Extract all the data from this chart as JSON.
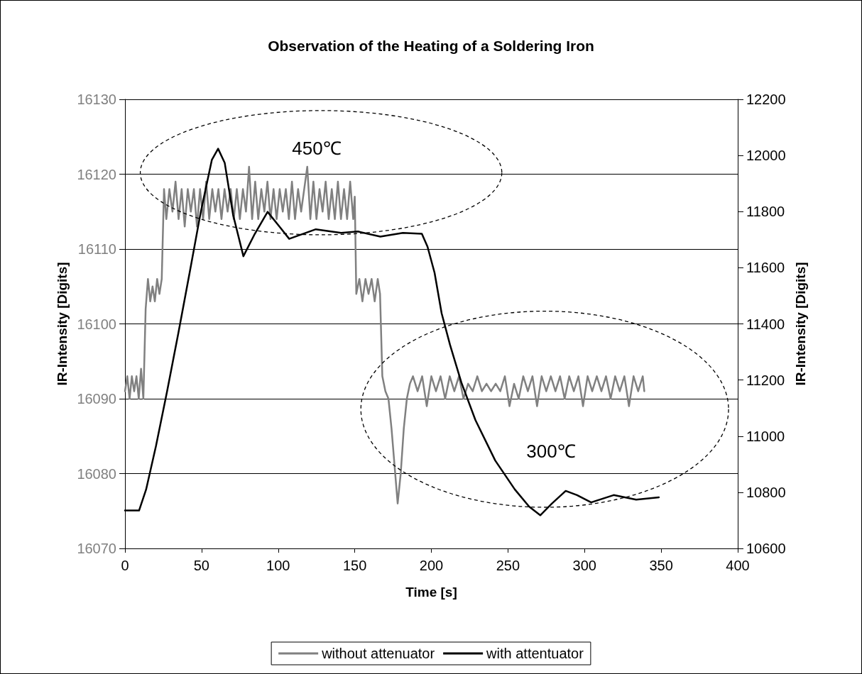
{
  "chart_data": {
    "type": "line",
    "title": "Observation of the Heating of a Soldering Iron",
    "xlabel": "Time [s]",
    "ylabel": "IR-Intensity [Digits]",
    "y2label": "IR-Intensity [Digits]",
    "xlim": [
      0,
      400
    ],
    "xticks": [
      0,
      50,
      100,
      150,
      200,
      250,
      300,
      350,
      400
    ],
    "ylim": [
      16070,
      16130
    ],
    "yticks": [
      16070,
      16080,
      16090,
      16100,
      16110,
      16120,
      16130
    ],
    "y2lim": [
      10600,
      12200
    ],
    "y2ticks": [
      10600,
      10800,
      11000,
      11200,
      11400,
      11600,
      11800,
      12000,
      12200
    ],
    "grid": "y",
    "legend": "bottom",
    "marker": "none",
    "line_style": "solid",
    "annotations": [
      "450℃",
      "300℃"
    ],
    "series": [
      {
        "name": "without attenuator",
        "color": "#808080",
        "x": [
          0,
          1.5,
          3,
          4.5,
          6,
          7.5,
          9,
          10.5,
          12,
          13.5,
          15,
          16.5,
          18,
          19.5,
          21,
          22.5,
          24,
          24.5,
          25.5,
          27,
          29,
          31,
          33,
          35,
          37,
          39,
          41,
          43,
          45,
          47,
          49,
          51,
          53,
          55,
          57,
          59,
          61,
          63,
          65,
          67,
          69,
          71,
          73,
          75,
          77,
          79,
          81,
          83,
          85,
          87,
          89,
          91,
          93,
          95,
          97,
          99,
          101,
          103,
          105,
          107,
          109,
          111,
          113,
          115,
          117,
          119,
          121,
          123,
          125,
          127,
          129,
          131,
          133,
          135,
          137,
          139,
          141,
          143,
          145,
          147,
          149,
          150,
          151,
          153,
          155,
          157,
          159,
          161,
          163,
          165,
          166.5,
          168,
          170,
          172,
          174,
          176,
          178,
          180,
          182,
          184,
          186,
          188,
          191,
          194,
          197,
          200,
          203,
          206,
          209,
          212,
          215,
          218,
          221,
          224,
          227,
          230,
          233,
          236,
          239,
          242,
          245,
          248,
          251,
          254,
          257,
          260,
          263,
          266,
          269,
          272,
          275,
          278,
          281,
          284,
          287,
          290,
          293,
          296,
          299,
          302,
          305,
          308,
          311,
          314,
          317,
          320,
          323,
          326,
          329,
          332,
          335,
          338,
          339
        ],
        "values": [
          16091,
          16093,
          16090,
          16093,
          16091,
          16093,
          16090,
          16094,
          16090,
          16102,
          16106,
          16103,
          16105,
          16103,
          16106,
          16104,
          16106,
          16110,
          16118,
          16114,
          16118,
          16115,
          16119,
          16114,
          16118,
          16113,
          16118,
          16115,
          16118,
          16113,
          16118,
          16114,
          16119,
          16114,
          16118,
          16115,
          16118,
          16114,
          16118,
          16115,
          16118,
          16114,
          16118,
          16114,
          16118,
          16115,
          16121,
          16114,
          16119,
          16114,
          16118,
          16115,
          16119,
          16114,
          16118,
          16114,
          16118,
          16115,
          16118,
          16114,
          16119,
          16114,
          16118,
          16115,
          16118,
          16121,
          16114,
          16119,
          16114,
          16118,
          16115,
          16119,
          16114,
          16118,
          16114,
          16119,
          16114,
          16118,
          16114,
          16119,
          16114,
          16117,
          16104,
          16106,
          16103,
          16106,
          16104,
          16106,
          16103,
          16106,
          16104,
          16093,
          16091,
          16090,
          16086,
          16081,
          16076,
          16080,
          16086,
          16090,
          16092,
          16093,
          16091,
          16093,
          16089,
          16093,
          16091,
          16093,
          16090,
          16093,
          16091,
          16093,
          16090,
          16092,
          16091,
          16093,
          16091,
          16092,
          16091,
          16092,
          16091,
          16093,
          16089,
          16092,
          16090,
          16093,
          16091,
          16093,
          16089,
          16093,
          16091,
          16093,
          16091,
          16093,
          16090,
          16093,
          16091,
          16093,
          16089,
          16093,
          16091,
          16093,
          16091,
          16093,
          16090,
          16093,
          16091,
          16093,
          16089,
          16093,
          16091,
          16093,
          16091
        ]
      },
      {
        "name": "with attentuator",
        "color": "#000000",
        "axis": "y2",
        "x": [
          0,
          9.2,
          13.8,
          20.2,
          27.5,
          34.8,
          42.2,
          49.5,
          56.7,
          60.8,
          65.1,
          70.6,
          77.3,
          84.3,
          93.1,
          100.8,
          107.2,
          124.6,
          141.1,
          152.1,
          166.7,
          181.4,
          193.8,
          197.5,
          202.1,
          206.7,
          212.2,
          219.6,
          228.8,
          241.7,
          254.5,
          263.8,
          271.1,
          278.5,
          287.7,
          295.1,
          304.3,
          319,
          333.7,
          348.5
        ],
        "values": [
          10735,
          10735,
          10810,
          10964,
          11160,
          11366,
          11582,
          11799,
          11984,
          12024,
          11974,
          11788,
          11641,
          11716,
          11799,
          11747,
          11703,
          11737,
          11724,
          11729,
          11711,
          11724,
          11721,
          11675,
          11582,
          11438,
          11325,
          11191,
          11057,
          10913,
          10810,
          10749,
          10718,
          10759,
          10805,
          10790,
          10764,
          10790,
          10774,
          10782
        ]
      }
    ]
  }
}
